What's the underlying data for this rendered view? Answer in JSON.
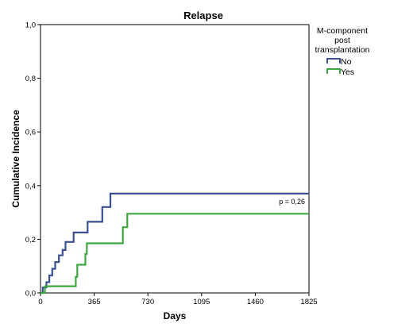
{
  "chart_data": {
    "type": "line",
    "title": "Relapse",
    "xlabel": "Days",
    "ylabel": "Cumulative Incidence",
    "xlim": [
      0,
      1825
    ],
    "ylim": [
      0,
      1.0
    ],
    "x_ticks": [
      0,
      365,
      730,
      1095,
      1460,
      1825
    ],
    "x_tick_labels": [
      "0",
      "365",
      "730",
      "1095",
      "1460",
      "1825"
    ],
    "y_ticks": [
      0,
      0.2,
      0.4,
      0.6,
      0.8,
      1.0
    ],
    "y_tick_labels": [
      "0,0",
      "0,2",
      "0,4",
      "0,6",
      "0,8",
      "1,0"
    ],
    "grid": false,
    "legend": {
      "title_lines": [
        "M-component",
        "post",
        "transplantation"
      ],
      "placement": "outside-top-right"
    },
    "annotation": "p = 0,26",
    "series": [
      {
        "name": "No",
        "color": "#3a4f94",
        "points": [
          [
            0,
            0
          ],
          [
            15,
            0
          ],
          [
            15,
            0.02
          ],
          [
            40,
            0.02
          ],
          [
            40,
            0.04
          ],
          [
            60,
            0.04
          ],
          [
            60,
            0.065
          ],
          [
            80,
            0.065
          ],
          [
            80,
            0.09
          ],
          [
            100,
            0.09
          ],
          [
            100,
            0.115
          ],
          [
            125,
            0.115
          ],
          [
            125,
            0.14
          ],
          [
            150,
            0.14
          ],
          [
            150,
            0.16
          ],
          [
            170,
            0.16
          ],
          [
            170,
            0.19
          ],
          [
            225,
            0.19
          ],
          [
            225,
            0.225
          ],
          [
            320,
            0.225
          ],
          [
            320,
            0.265
          ],
          [
            420,
            0.265
          ],
          [
            420,
            0.32
          ],
          [
            475,
            0.32
          ],
          [
            475,
            0.37
          ],
          [
            1825,
            0.37
          ]
        ]
      },
      {
        "name": "Yes",
        "color": "#3ea63e",
        "points": [
          [
            0,
            0
          ],
          [
            30,
            0
          ],
          [
            30,
            0.025
          ],
          [
            240,
            0.025
          ],
          [
            240,
            0.06
          ],
          [
            250,
            0.06
          ],
          [
            250,
            0.105
          ],
          [
            305,
            0.105
          ],
          [
            305,
            0.145
          ],
          [
            315,
            0.145
          ],
          [
            315,
            0.185
          ],
          [
            560,
            0.185
          ],
          [
            560,
            0.245
          ],
          [
            590,
            0.245
          ],
          [
            590,
            0.295
          ],
          [
            1825,
            0.295
          ]
        ]
      }
    ]
  }
}
